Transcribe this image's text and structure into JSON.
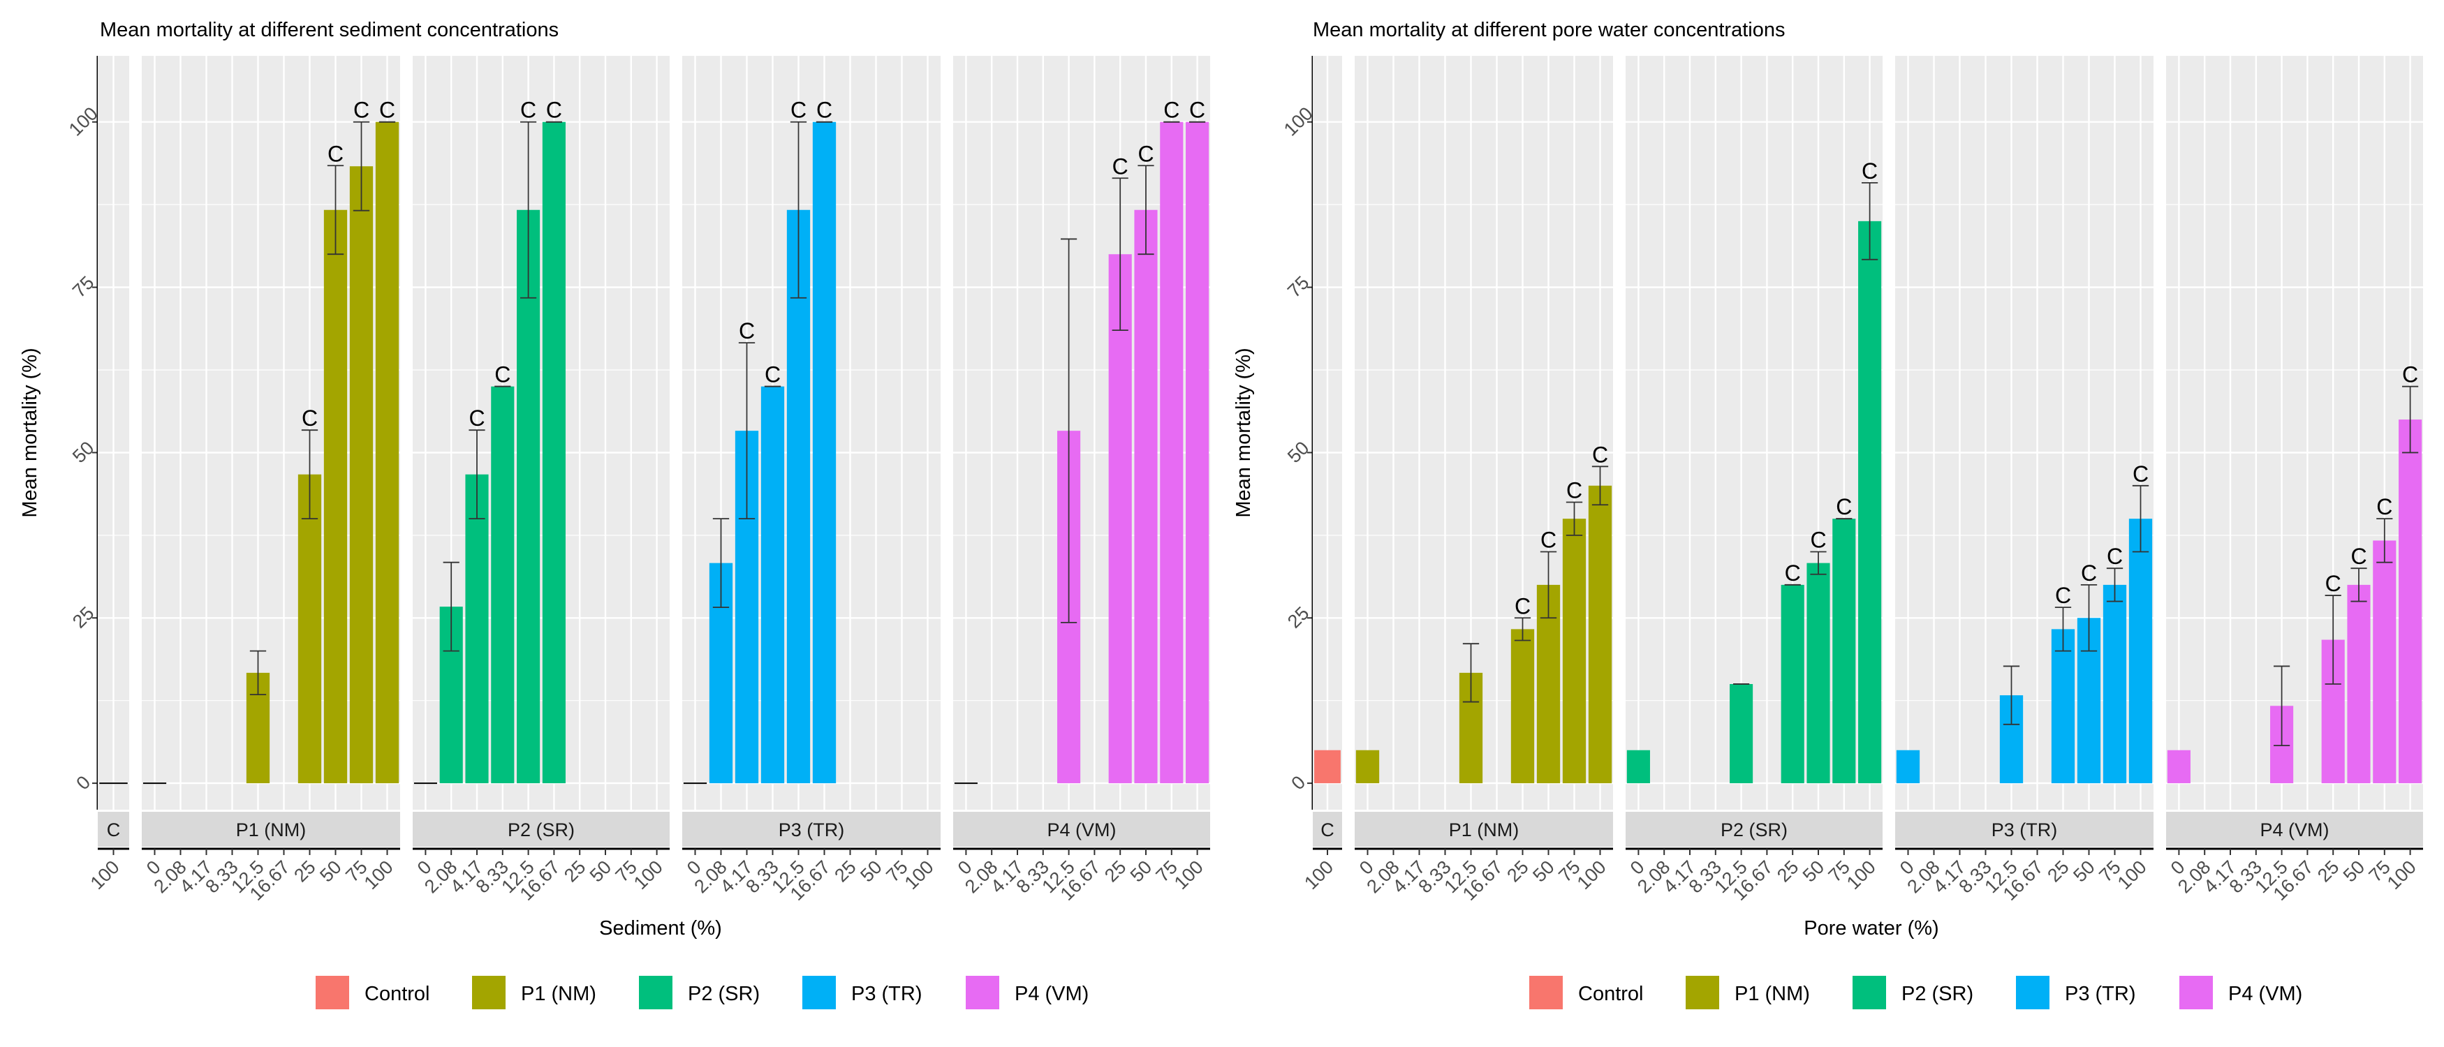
{
  "colors": {
    "panel_bg": "#EBEBEB",
    "grid": "#FFFFFF",
    "strip_bg": "#D9D9D9",
    "axis_text": "#4D4D4D",
    "axis_line": "#000000",
    "Control": "#F8766D",
    "P1 (NM)": "#A3A500",
    "P2 (SR)": "#00BF7D",
    "P3 (TR)": "#00B0F6",
    "P4 (VM)": "#E76BF3"
  },
  "chart_data": [
    {
      "type": "bar",
      "title": "Mean mortality at different sediment concentrations",
      "xlabel": "Sediment (%)",
      "ylabel": "Mean mortality (%)",
      "ylim": [
        -4,
        110
      ],
      "yticks": [
        0,
        25,
        50,
        75,
        100
      ],
      "grid": true,
      "legend_position": "bottom",
      "legend": [
        "Control",
        "P1 (NM)",
        "P2 (SR)",
        "P3 (TR)",
        "P4 (VM)"
      ],
      "facets": [
        {
          "label": "C",
          "series": "Control",
          "categories": [
            "100"
          ],
          "values": [
            0
          ],
          "errors": [
            null
          ],
          "labels": [
            ""
          ]
        },
        {
          "label": "P1 (NM)",
          "series": "P1 (NM)",
          "categories": [
            "0",
            "2.08",
            "4.17",
            "8.33",
            "12.5",
            "16.67",
            "25",
            "50",
            "75",
            "100"
          ],
          "values": [
            0,
            null,
            null,
            null,
            16.7,
            null,
            46.7,
            86.7,
            93.3,
            100
          ],
          "errors": [
            null,
            null,
            null,
            null,
            3.3,
            null,
            6.7,
            6.7,
            6.7,
            0
          ],
          "labels": [
            "",
            "",
            "",
            "",
            "",
            "",
            "C",
            "C",
            "C",
            "C"
          ]
        },
        {
          "label": "P2 (SR)",
          "series": "P2 (SR)",
          "categories": [
            "0",
            "2.08",
            "4.17",
            "8.33",
            "12.5",
            "16.67",
            "25",
            "50",
            "75",
            "100"
          ],
          "values": [
            0,
            26.7,
            46.7,
            60,
            86.7,
            100,
            null,
            null,
            null,
            null
          ],
          "errors": [
            null,
            6.7,
            6.7,
            0,
            13.3,
            0,
            null,
            null,
            null,
            null
          ],
          "labels": [
            "",
            "",
            "C",
            "C",
            "C",
            "C",
            "",
            "",
            "",
            ""
          ]
        },
        {
          "label": "P3 (TR)",
          "series": "P3 (TR)",
          "categories": [
            "0",
            "2.08",
            "4.17",
            "8.33",
            "12.5",
            "16.67",
            "25",
            "50",
            "75",
            "100"
          ],
          "values": [
            0,
            33.3,
            53.3,
            60,
            86.7,
            100,
            null,
            null,
            null,
            null
          ],
          "errors": [
            null,
            6.7,
            13.3,
            0,
            13.3,
            0,
            null,
            null,
            null,
            null
          ],
          "labels": [
            "",
            "",
            "C",
            "C",
            "C",
            "C",
            "",
            "",
            "",
            ""
          ]
        },
        {
          "label": "P4 (VM)",
          "series": "P4 (VM)",
          "categories": [
            "0",
            "2.08",
            "4.17",
            "8.33",
            "12.5",
            "16.67",
            "25",
            "50",
            "75",
            "100"
          ],
          "values": [
            0,
            null,
            null,
            null,
            53.3,
            null,
            80,
            86.7,
            100,
            100
          ],
          "errors": [
            null,
            null,
            null,
            null,
            29,
            null,
            11.5,
            6.7,
            0,
            0
          ],
          "labels": [
            "",
            "",
            "",
            "",
            "",
            "",
            "C",
            "C",
            "C",
            "C"
          ]
        }
      ]
    },
    {
      "type": "bar",
      "title": "Mean mortality at different pore water concentrations",
      "xlabel": "Pore water (%)",
      "ylabel": "Mean mortality  (%)",
      "ylim": [
        -4,
        110
      ],
      "yticks": [
        0,
        25,
        50,
        75,
        100
      ],
      "grid": true,
      "legend_position": "bottom",
      "legend": [
        "Control",
        "P1 (NM)",
        "P2 (SR)",
        "P3 (TR)",
        "P4 (VM)"
      ],
      "facets": [
        {
          "label": "C",
          "series": "Control",
          "categories": [
            "100"
          ],
          "values": [
            5
          ],
          "errors": [
            null
          ],
          "labels": [
            ""
          ]
        },
        {
          "label": "P1 (NM)",
          "series": "P1 (NM)",
          "categories": [
            "0",
            "2.08",
            "4.17",
            "8.33",
            "12.5",
            "16.67",
            "25",
            "50",
            "75",
            "100"
          ],
          "values": [
            5,
            null,
            null,
            null,
            16.7,
            null,
            23.3,
            30,
            40,
            45
          ],
          "errors": [
            null,
            null,
            null,
            null,
            4.4,
            null,
            1.7,
            5,
            2.5,
            2.9
          ],
          "labels": [
            "",
            "",
            "",
            "",
            "",
            "",
            "C",
            "C",
            "C",
            "C"
          ]
        },
        {
          "label": "P2 (SR)",
          "series": "P2 (SR)",
          "categories": [
            "0",
            "2.08",
            "4.17",
            "8.33",
            "12.5",
            "16.67",
            "25",
            "50",
            "75",
            "100"
          ],
          "values": [
            5,
            null,
            null,
            null,
            15,
            null,
            30,
            33.3,
            40,
            85
          ],
          "errors": [
            null,
            null,
            null,
            null,
            0,
            null,
            0,
            1.7,
            0,
            5.8
          ],
          "labels": [
            "",
            "",
            "",
            "",
            "",
            "",
            "C",
            "C",
            "C",
            "C"
          ]
        },
        {
          "label": "P3 (TR)",
          "series": "P3 (TR)",
          "categories": [
            "0",
            "2.08",
            "4.17",
            "8.33",
            "12.5",
            "16.67",
            "25",
            "50",
            "75",
            "100"
          ],
          "values": [
            5,
            null,
            null,
            null,
            13.3,
            null,
            23.3,
            25,
            30,
            40
          ],
          "errors": [
            null,
            null,
            null,
            null,
            4.4,
            null,
            3.3,
            5,
            2.5,
            5
          ],
          "labels": [
            "",
            "",
            "",
            "",
            "",
            "",
            "C",
            "C",
            "C",
            "C"
          ]
        },
        {
          "label": "P4 (VM)",
          "series": "P4 (VM)",
          "categories": [
            "0",
            "2.08",
            "4.17",
            "8.33",
            "12.5",
            "16.67",
            "25",
            "50",
            "75",
            "100"
          ],
          "values": [
            5,
            null,
            null,
            null,
            11.7,
            null,
            21.7,
            30,
            36.7,
            55
          ],
          "errors": [
            null,
            null,
            null,
            null,
            6,
            null,
            6.7,
            2.5,
            3.3,
            5
          ],
          "labels": [
            "",
            "",
            "",
            "",
            "",
            "",
            "C",
            "C",
            "C",
            "C"
          ]
        }
      ]
    }
  ]
}
